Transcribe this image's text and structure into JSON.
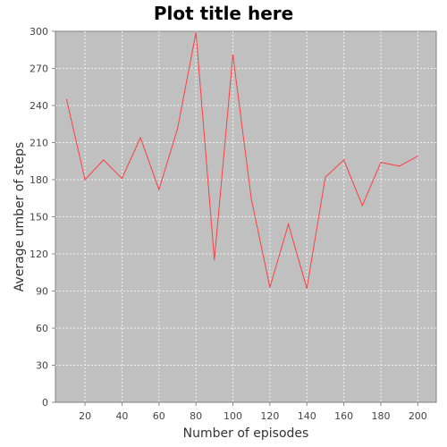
{
  "chart_data": {
    "type": "line",
    "title": "Plot title here",
    "xlabel": "Number of episodes",
    "ylabel": "Average umber of steps",
    "xlim": [
      4,
      210
    ],
    "ylim": [
      0,
      300
    ],
    "x_ticks": [
      20,
      40,
      60,
      80,
      100,
      120,
      140,
      160,
      180,
      200
    ],
    "y_ticks": [
      0,
      30,
      60,
      90,
      120,
      150,
      180,
      210,
      240,
      270,
      300
    ],
    "grid": true,
    "legend": "none",
    "colors": {
      "plot_background": "#c0c0c0",
      "series": "#ff4040"
    },
    "series": [
      {
        "x": [
          10,
          20,
          30,
          40,
          50,
          60,
          70,
          80,
          90,
          100,
          110,
          120,
          130,
          140,
          150,
          160,
          170,
          180,
          190,
          200
        ],
        "values": [
          245,
          180,
          196,
          181,
          214,
          172,
          221,
          299,
          115,
          281,
          164,
          93,
          144,
          92,
          182,
          196,
          159,
          194,
          191,
          199
        ]
      }
    ]
  }
}
